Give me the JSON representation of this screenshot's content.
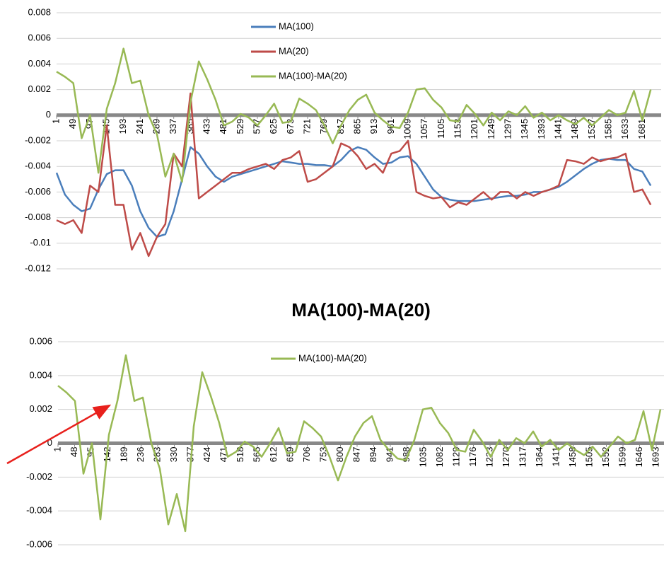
{
  "chart_data": [
    {
      "type": "line",
      "x": [
        1,
        25,
        49,
        73,
        97,
        121,
        145,
        169,
        193,
        217,
        241,
        265,
        289,
        313,
        337,
        361,
        385,
        409,
        433,
        457,
        481,
        505,
        529,
        553,
        577,
        601,
        625,
        649,
        673,
        697,
        721,
        745,
        769,
        793,
        817,
        841,
        865,
        889,
        913,
        937,
        961,
        985,
        1009,
        1033,
        1057,
        1081,
        1105,
        1129,
        1153,
        1177,
        1201,
        1225,
        1249,
        1273,
        1297,
        1321,
        1345,
        1369,
        1393,
        1417,
        1441,
        1465,
        1489,
        1513,
        1537,
        1561,
        1585,
        1609,
        1633,
        1657,
        1681,
        1705
      ],
      "xlim": [
        1,
        1735
      ],
      "xticks": [
        1,
        49,
        97,
        145,
        193,
        241,
        289,
        337,
        385,
        433,
        481,
        529,
        577,
        625,
        673,
        721,
        769,
        817,
        865,
        913,
        961,
        1009,
        1057,
        1105,
        1153,
        1201,
        1249,
        1297,
        1345,
        1393,
        1441,
        1489,
        1537,
        1585,
        1633,
        1681
      ],
      "ylim": [
        -0.012,
        0.008
      ],
      "yticks": [
        -0.012,
        -0.01,
        -0.008,
        -0.006,
        -0.004,
        -0.002,
        0,
        0.002,
        0.004,
        0.006,
        0.008
      ],
      "grid": true,
      "series": [
        {
          "name": "MA(100)",
          "color": "#4a7ebb",
          "values": [
            -0.0045,
            -0.0062,
            -0.007,
            -0.0075,
            -0.0073,
            -0.0058,
            -0.0046,
            -0.0043,
            -0.0043,
            -0.0055,
            -0.0075,
            -0.0088,
            -0.0095,
            -0.0093,
            -0.0075,
            -0.005,
            -0.0025,
            -0.003,
            -0.004,
            -0.0048,
            -0.0052,
            -0.0048,
            -0.0046,
            -0.0044,
            -0.0042,
            -0.004,
            -0.0038,
            -0.0036,
            -0.0037,
            -0.0038,
            -0.0038,
            -0.0039,
            -0.0039,
            -0.004,
            -0.0035,
            -0.0028,
            -0.0025,
            -0.0027,
            -0.0033,
            -0.0038,
            -0.0037,
            -0.0033,
            -0.0032,
            -0.0038,
            -0.0048,
            -0.0058,
            -0.0064,
            -0.0066,
            -0.0067,
            -0.0067,
            -0.0067,
            -0.0066,
            -0.0065,
            -0.0064,
            -0.0063,
            -0.0063,
            -0.0062,
            -0.006,
            -0.006,
            -0.0058,
            -0.0056,
            -0.0052,
            -0.0047,
            -0.0042,
            -0.0038,
            -0.0035,
            -0.0034,
            -0.0035,
            -0.0035,
            -0.0042,
            -0.0044,
            -0.0055
          ]
        },
        {
          "name": "MA(20)",
          "color": "#be4b48",
          "values": [
            -0.0082,
            -0.0085,
            -0.0082,
            -0.0092,
            -0.0055,
            -0.006,
            -0.0008,
            -0.007,
            -0.007,
            -0.0105,
            -0.0092,
            -0.011,
            -0.0095,
            -0.0085,
            -0.003,
            -0.004,
            0.0017,
            -0.0065,
            -0.006,
            -0.0055,
            -0.005,
            -0.0045,
            -0.0045,
            -0.0042,
            -0.004,
            -0.0038,
            -0.0042,
            -0.0035,
            -0.0033,
            -0.0028,
            -0.0052,
            -0.005,
            -0.0045,
            -0.004,
            -0.0022,
            -0.0025,
            -0.0032,
            -0.0042,
            -0.0038,
            -0.0045,
            -0.003,
            -0.0028,
            -0.002,
            -0.006,
            -0.0063,
            -0.0065,
            -0.0064,
            -0.0072,
            -0.0068,
            -0.007,
            -0.0065,
            -0.006,
            -0.0066,
            -0.006,
            -0.006,
            -0.0065,
            -0.006,
            -0.0063,
            -0.006,
            -0.0058,
            -0.0055,
            -0.0035,
            -0.0036,
            -0.0038,
            -0.0033,
            -0.0036,
            -0.0034,
            -0.0033,
            -0.003,
            -0.006,
            -0.0058,
            -0.007
          ]
        },
        {
          "name": "MA(100)-MA(20)",
          "color": "#98b954",
          "values": [
            0.0034,
            0.003,
            0.0025,
            -0.0018,
            0.0,
            -0.0045,
            0.0005,
            0.0025,
            0.0052,
            0.0025,
            0.0027,
            0.0,
            -0.0015,
            -0.0048,
            -0.003,
            -0.0052,
            0.001,
            0.0042,
            0.0028,
            0.0012,
            -0.0008,
            -0.0005,
            0.0001,
            -0.0002,
            -0.0008,
            0.0,
            0.0009,
            -0.0006,
            -0.0005,
            0.0013,
            0.0009,
            0.0004,
            -0.0008,
            -0.0022,
            -0.0008,
            0.0004,
            0.0012,
            0.0016,
            0.0002,
            -0.0004,
            -0.0009,
            -0.001,
            0.0002,
            0.002,
            0.0021,
            0.0012,
            0.0006,
            -0.0004,
            -0.0005,
            0.0008,
            0.0001,
            -0.0008,
            0.0002,
            -0.0004,
            0.0003,
            0.0,
            0.0007,
            -0.0002,
            0.0002,
            -0.0004,
            0.0,
            -0.0004,
            -0.0007,
            -0.0002,
            -0.0008,
            -0.0002,
            0.0004,
            0.0,
            0.0002,
            0.0019,
            -0.0004,
            0.002
          ]
        }
      ]
    },
    {
      "type": "line",
      "title": "MA(100)-MA(20)",
      "x": [
        1,
        25,
        49,
        73,
        97,
        121,
        145,
        169,
        193,
        217,
        241,
        265,
        289,
        313,
        337,
        361,
        385,
        409,
        433,
        457,
        481,
        505,
        529,
        553,
        577,
        601,
        625,
        649,
        673,
        697,
        721,
        745,
        769,
        793,
        817,
        841,
        865,
        889,
        913,
        937,
        961,
        985,
        1009,
        1033,
        1057,
        1081,
        1105,
        1129,
        1153,
        1177,
        1201,
        1225,
        1249,
        1273,
        1297,
        1321,
        1345,
        1369,
        1393,
        1417,
        1441,
        1465,
        1489,
        1513,
        1537,
        1561,
        1585,
        1609,
        1633,
        1657,
        1681,
        1705
      ],
      "xlim": [
        1,
        1715
      ],
      "xticks": [
        1,
        48,
        95,
        142,
        189,
        236,
        283,
        330,
        377,
        424,
        471,
        518,
        565,
        612,
        659,
        706,
        753,
        800,
        847,
        894,
        941,
        988,
        1035,
        1082,
        1129,
        1176,
        1223,
        1270,
        1317,
        1364,
        1411,
        1458,
        1505,
        1552,
        1599,
        1646,
        1693
      ],
      "ylim": [
        -0.006,
        0.006
      ],
      "yticks": [
        -0.006,
        -0.004,
        -0.002,
        0,
        0.002,
        0.004,
        0.006
      ],
      "grid": true,
      "series": [
        {
          "name": "MA(100)-MA(20)",
          "color": "#98b954",
          "values": [
            0.0034,
            0.003,
            0.0025,
            -0.0018,
            0.0,
            -0.0045,
            0.0005,
            0.0025,
            0.0052,
            0.0025,
            0.0027,
            0.0,
            -0.0015,
            -0.0048,
            -0.003,
            -0.0052,
            0.001,
            0.0042,
            0.0028,
            0.0012,
            -0.0008,
            -0.0005,
            0.0001,
            -0.0002,
            -0.0008,
            0.0,
            0.0009,
            -0.0006,
            -0.0005,
            0.0013,
            0.0009,
            0.0004,
            -0.0008,
            -0.0022,
            -0.0008,
            0.0004,
            0.0012,
            0.0016,
            0.0002,
            -0.0004,
            -0.0009,
            -0.001,
            0.0002,
            0.002,
            0.0021,
            0.0012,
            0.0006,
            -0.0004,
            -0.0005,
            0.0008,
            0.0001,
            -0.0008,
            0.0002,
            -0.0004,
            0.0003,
            0.0,
            0.0007,
            -0.0002,
            0.0002,
            -0.0004,
            0.0,
            -0.0004,
            -0.0007,
            -0.0002,
            -0.0008,
            -0.0002,
            0.0004,
            0.0,
            0.0002,
            0.0019,
            -0.0004,
            0.002
          ]
        }
      ]
    }
  ]
}
